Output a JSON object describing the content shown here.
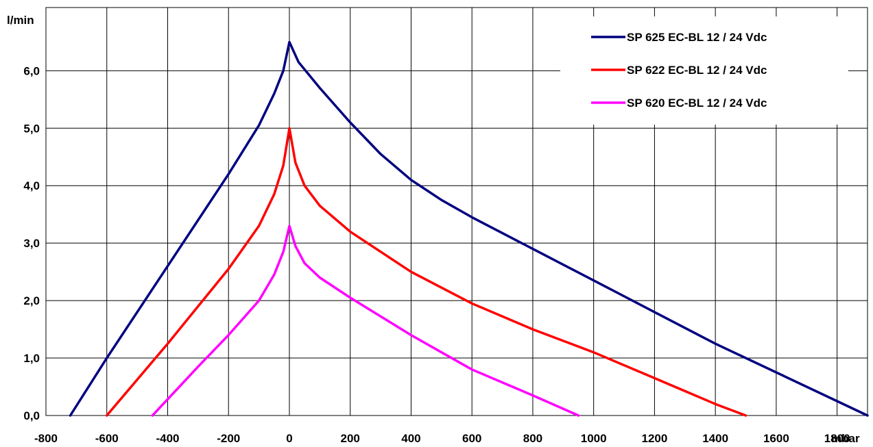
{
  "chart_data": {
    "type": "line",
    "x_unit": "mbar",
    "y_unit": "l/min",
    "xlim": [
      -800,
      1900
    ],
    "ylim": [
      0,
      7.1
    ],
    "x_ticks": [
      "-800",
      "-600",
      "-400",
      "-200",
      "0",
      "200",
      "400",
      "600",
      "800",
      "1000",
      "1200",
      "1400",
      "1600",
      "1800"
    ],
    "y_ticks": [
      "0,0",
      "1,0",
      "2,0",
      "3,0",
      "4,0",
      "5,0",
      "6,0"
    ],
    "grid": true,
    "legend_position": "top-right",
    "series": [
      {
        "name": "SP 625 EC-BL 12 / 24 Vdc",
        "color": "#000080",
        "points": [
          [
            -720,
            0.0
          ],
          [
            -600,
            1.0
          ],
          [
            -400,
            2.6
          ],
          [
            -200,
            4.2
          ],
          [
            -100,
            5.05
          ],
          [
            -50,
            5.6
          ],
          [
            -20,
            6.0
          ],
          [
            0,
            6.5
          ],
          [
            30,
            6.15
          ],
          [
            100,
            5.7
          ],
          [
            200,
            5.1
          ],
          [
            300,
            4.55
          ],
          [
            400,
            4.1
          ],
          [
            500,
            3.75
          ],
          [
            600,
            3.45
          ],
          [
            800,
            2.9
          ],
          [
            1000,
            2.35
          ],
          [
            1200,
            1.8
          ],
          [
            1400,
            1.25
          ],
          [
            1600,
            0.75
          ],
          [
            1800,
            0.25
          ],
          [
            1900,
            0.0
          ]
        ]
      },
      {
        "name": "SP 622 EC-BL  12 / 24 Vdc",
        "color": "#ff0000",
        "points": [
          [
            -600,
            0.0
          ],
          [
            -400,
            1.25
          ],
          [
            -200,
            2.55
          ],
          [
            -100,
            3.3
          ],
          [
            -50,
            3.85
          ],
          [
            -20,
            4.35
          ],
          [
            0,
            5.0
          ],
          [
            20,
            4.4
          ],
          [
            50,
            4.0
          ],
          [
            100,
            3.65
          ],
          [
            200,
            3.2
          ],
          [
            400,
            2.5
          ],
          [
            600,
            1.95
          ],
          [
            800,
            1.5
          ],
          [
            1000,
            1.1
          ],
          [
            1200,
            0.65
          ],
          [
            1400,
            0.2
          ],
          [
            1500,
            0.0
          ]
        ]
      },
      {
        "name": "SP 620 EC-BL  12 / 24 Vdc",
        "color": "#ff00ff",
        "points": [
          [
            -450,
            0.0
          ],
          [
            -300,
            0.85
          ],
          [
            -200,
            1.4
          ],
          [
            -100,
            2.0
          ],
          [
            -50,
            2.45
          ],
          [
            -20,
            2.85
          ],
          [
            0,
            3.3
          ],
          [
            20,
            2.95
          ],
          [
            50,
            2.65
          ],
          [
            100,
            2.4
          ],
          [
            200,
            2.05
          ],
          [
            400,
            1.4
          ],
          [
            500,
            1.1
          ],
          [
            600,
            0.8
          ],
          [
            800,
            0.35
          ],
          [
            950,
            0.0
          ]
        ]
      }
    ]
  }
}
